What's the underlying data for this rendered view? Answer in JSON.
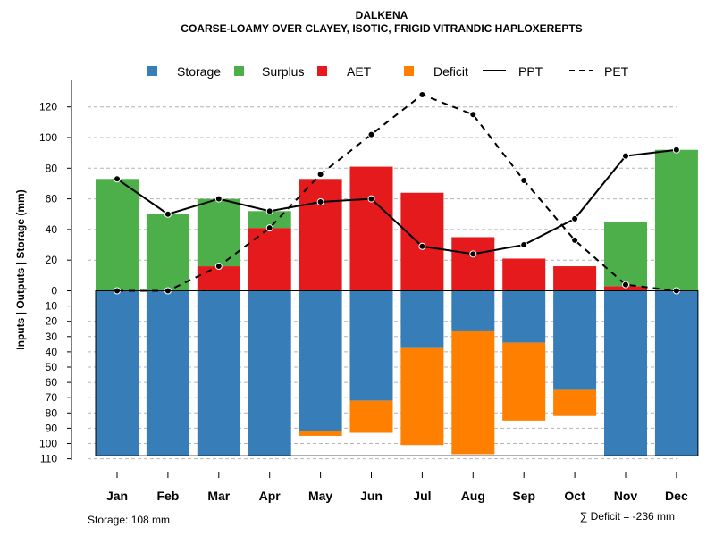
{
  "chart_data": {
    "type": "bar",
    "title": "DALKENA",
    "subtitle": "COARSE-LOAMY OVER CLAYEY, ISOTIC, FRIGID VITRANDIC HAPLOXEREPTS",
    "ylabel": "Inputs | Outputs | Storage    (mm)",
    "categories": [
      "Jan",
      "Feb",
      "Mar",
      "Apr",
      "May",
      "Jun",
      "Jul",
      "Aug",
      "Sep",
      "Oct",
      "Nov",
      "Dec"
    ],
    "ylim": [
      -110,
      130
    ],
    "upper_ticks": [
      "0",
      "20",
      "40",
      "60",
      "80",
      "100",
      "120"
    ],
    "lower_ticks": [
      "10",
      "20",
      "30",
      "40",
      "50",
      "60",
      "70",
      "80",
      "90",
      "100",
      "110"
    ],
    "grid": true,
    "legend_position": "top",
    "series": [
      {
        "name": "Storage",
        "color": "#377EB8",
        "values": [
          108,
          108,
          108,
          108,
          92,
          72,
          37,
          26,
          34,
          65,
          108,
          108
        ]
      },
      {
        "name": "Surplus",
        "color": "#4DAF4A",
        "values": [
          73,
          50,
          44,
          11,
          0,
          0,
          0,
          0,
          0,
          0,
          42,
          92
        ]
      },
      {
        "name": "AET",
        "color": "#E41A1C",
        "values": [
          0,
          0,
          16,
          41,
          73,
          81,
          64,
          35,
          21,
          16,
          3,
          0
        ]
      },
      {
        "name": "Deficit",
        "color": "#FF7F00",
        "values": [
          0,
          0,
          0,
          0,
          3,
          21,
          64,
          81,
          51,
          17,
          0,
          0
        ]
      },
      {
        "name": "PPT",
        "color": "#000000",
        "style": "solid",
        "values": [
          73,
          50,
          60,
          52,
          58,
          60,
          29,
          24,
          30,
          47,
          88,
          92
        ]
      },
      {
        "name": "PET",
        "color": "#000000",
        "style": "dashed",
        "values": [
          0,
          0,
          16,
          41,
          76,
          102,
          128,
          115,
          72,
          33,
          4,
          0
        ]
      }
    ],
    "storage_capacity": 108,
    "storage_note": "Storage: 108 mm",
    "deficit_note": "∑ Deficit = -236 mm"
  }
}
